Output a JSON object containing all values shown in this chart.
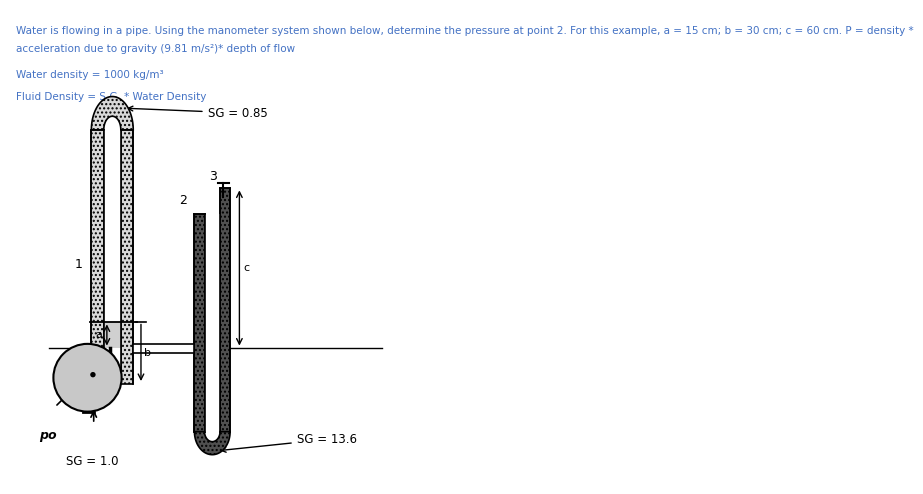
{
  "title_line1": "Water is flowing in a pipe. Using the manometer system shown below, determine the pressure at point 2. For this example, a = 15 cm; b = 30 cm; c = 60 cm. P = density *",
  "title_line2": "acceleration due to gravity (9.81 m/s²)* depth of flow",
  "water_density_label": "Water density = 1000 kg/m³",
  "fluid_density_label": "Fluid Density = S.G. * Water Density",
  "sg_top": "SG = 0.85",
  "sg_bottom": "SG = 13.6",
  "sg_circle": "SG = 1.0",
  "label_po": "po",
  "label_1": "1",
  "label_2": "2",
  "label_3": "3",
  "label_a": "a",
  "label_b": "b",
  "label_c": "c",
  "text_color": "#4472C4",
  "bg_color": "#ffffff"
}
